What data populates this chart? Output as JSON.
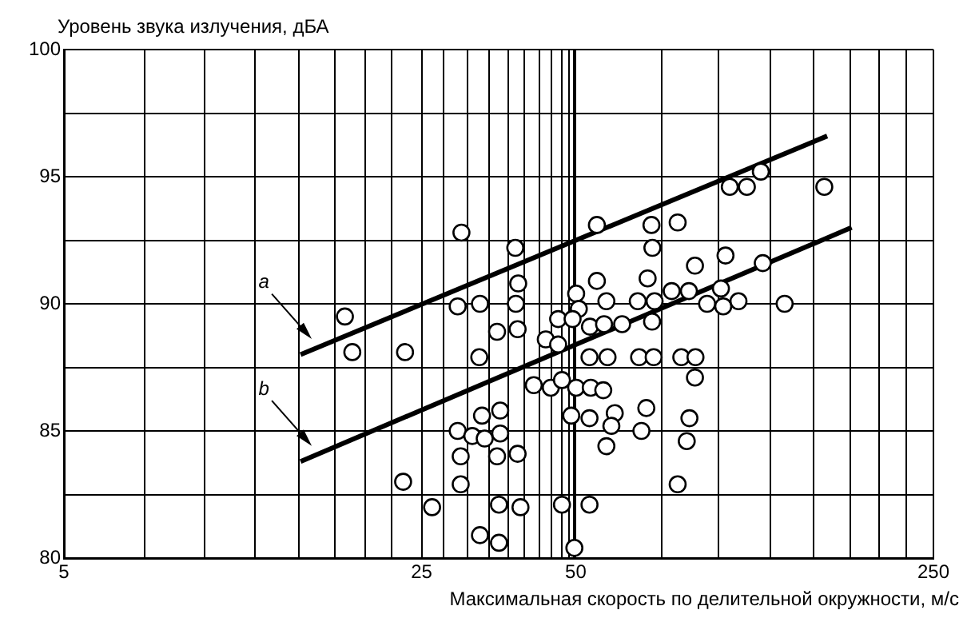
{
  "chart_data": {
    "type": "scatter",
    "xlabel": "Максимальная скорость по делительной окружности, м/с",
    "ylabel": "Уровень звука излучения, дБА",
    "log": "x",
    "grid": true,
    "legend": false,
    "marker": "circle",
    "xlim": [
      5,
      250
    ],
    "ylim": [
      80,
      100
    ],
    "xticks": [
      5,
      {
        "value": 7.2,
        "label": null
      },
      {
        "value": 9.4,
        "label": null
      },
      {
        "value": 11.8,
        "label": null
      },
      {
        "value": 14.4,
        "label": null
      },
      {
        "value": 16.9,
        "label": null
      },
      {
        "value": 19.4,
        "label": null
      },
      {
        "value": 21.8,
        "label": null
      },
      25,
      {
        "value": 27.6,
        "label": null
      },
      {
        "value": 30.7,
        "label": null
      },
      {
        "value": 33.9,
        "label": null
      },
      {
        "value": 36.9,
        "label": null
      },
      {
        "value": 39.7,
        "label": null
      },
      {
        "value": 42.5,
        "label": null
      },
      {
        "value": 44.9,
        "label": null
      },
      {
        "value": 46.9,
        "label": null
      },
      {
        "value": 48.5,
        "label": null
      },
      {
        "value": 49.6,
        "label": null
      },
      50,
      {
        "value": 73.5,
        "label": null
      },
      {
        "value": 95,
        "label": null
      },
      {
        "value": 120,
        "label": null
      },
      {
        "value": 146,
        "label": null
      },
      {
        "value": 172,
        "label": null
      },
      {
        "value": 196,
        "label": null
      },
      {
        "value": 221,
        "label": null
      },
      250
    ],
    "yticks": [
      80,
      {
        "value": 82.5,
        "label": null
      },
      85,
      {
        "value": 87.5,
        "label": null
      },
      90,
      {
        "value": 92.5,
        "label": null
      },
      95,
      {
        "value": 97.5,
        "label": null
      },
      100
    ],
    "series": [
      {
        "color": "#000000",
        "x": [
          29.9,
          38.1,
          38.6,
          17.7,
          29.4,
          32.5,
          38.2,
          35.1,
          38.5,
          43.7,
          46.2,
          46.2,
          18.3,
          23.2,
          32.4,
          41.4,
          44.7,
          47.0,
          49.0,
          32.8,
          35.6,
          29.4,
          31.4,
          33.2,
          35.6,
          29.8,
          35.1,
          38.5,
          23.0,
          29.8,
          26.2,
          35.4,
          39.0,
          47.0,
          32.5,
          35.4,
          49.7,
          115,
          100,
          108,
          153,
          55.0,
          70.3,
          79.1,
          70.6,
          98.1,
          85.5,
          116,
          55.0,
          69.1,
          50.1,
          77.0,
          83.2,
          96.1,
          57.4,
          66.1,
          71.3,
          90.3,
          97.1,
          104,
          128,
          50.7,
          49.3,
          53.3,
          56.8,
          61.6,
          70.5,
          53.2,
          57.7,
          66.5,
          71.0,
          80.4,
          85.7,
          85.5,
          50.1,
          53.5,
          56.6,
          53.2,
          59.6,
          68.7,
          58.7,
          83.4,
          67.2,
          57.4,
          82.4,
          79.1,
          53.2
        ],
        "values": [
          92.8,
          92.2,
          90.8,
          89.5,
          89.9,
          90.0,
          90.0,
          88.9,
          89.0,
          88.6,
          89.4,
          88.4,
          88.1,
          88.1,
          87.9,
          86.8,
          86.7,
          87.0,
          85.6,
          85.6,
          85.8,
          85.0,
          84.8,
          84.7,
          84.9,
          84.0,
          84.0,
          84.1,
          83.0,
          82.9,
          82.0,
          82.1,
          82.0,
          82.1,
          80.9,
          80.6,
          80.4,
          95.2,
          94.6,
          94.6,
          94.6,
          93.1,
          93.1,
          93.2,
          92.2,
          91.9,
          91.5,
          91.6,
          90.9,
          91.0,
          90.4,
          90.5,
          90.5,
          90.6,
          90.1,
          90.1,
          90.1,
          90.0,
          89.9,
          90.1,
          90.0,
          89.8,
          89.4,
          89.1,
          89.2,
          89.2,
          89.3,
          87.9,
          87.9,
          87.9,
          87.9,
          87.9,
          87.9,
          87.1,
          86.7,
          86.7,
          86.6,
          85.5,
          85.7,
          85.9,
          85.2,
          85.5,
          85.0,
          84.4,
          84.6,
          82.9,
          82.1
        ]
      },
      {
        "type": "line",
        "name": "a",
        "color": "#000000",
        "x": [
          14.5,
          155
        ],
        "values": [
          88.0,
          96.6
        ],
        "marker": "none"
      },
      {
        "type": "line",
        "name": "b",
        "color": "#000000",
        "x": [
          14.5,
          173
        ],
        "values": [
          83.8,
          93.0
        ],
        "marker": "none"
      }
    ]
  }
}
